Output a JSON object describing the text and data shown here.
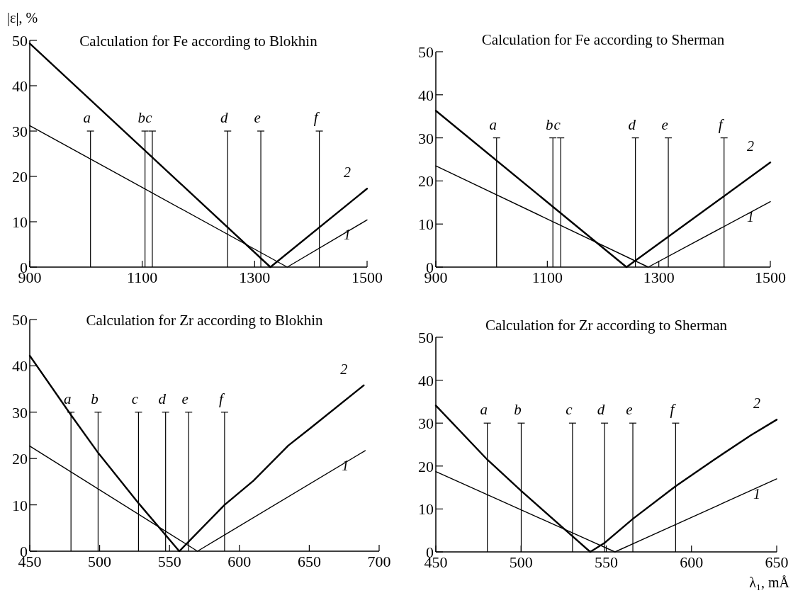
{
  "chart_data": [
    {
      "type": "line",
      "title": "Calculation for Fe according to Blokhin",
      "ylabel": "|ε|, %",
      "xlim": [
        900,
        1500
      ],
      "xticks": [
        900,
        1100,
        1300,
        1500
      ],
      "ylim": [
        0,
        50
      ],
      "yticks": [
        0,
        10,
        20,
        30,
        40,
        50
      ],
      "grid": false,
      "marker": "none",
      "line_style": "solid",
      "series": [
        {
          "name": "1",
          "color": "#000000",
          "x": [
            900,
            1358,
            1500
          ],
          "values": [
            31.2,
            0,
            10.4
          ]
        },
        {
          "name": "2",
          "color": "#000000",
          "x": [
            900,
            1328,
            1500
          ],
          "values": [
            49.3,
            0,
            17.3
          ]
        }
      ],
      "ref_lines": [
        {
          "axis": "x",
          "value": 1008,
          "label": "a"
        },
        {
          "axis": "x",
          "value": 1105,
          "label": "b"
        },
        {
          "axis": "x",
          "value": 1118,
          "label": "c"
        },
        {
          "axis": "x",
          "value": 1252,
          "label": "d"
        },
        {
          "axis": "x",
          "value": 1311,
          "label": "e"
        },
        {
          "axis": "x",
          "value": 1415,
          "label": "f"
        }
      ]
    },
    {
      "type": "line",
      "title": "Calculation for Fe according to Sherman",
      "xlim": [
        900,
        1500
      ],
      "xticks": [
        900,
        1100,
        1300,
        1500
      ],
      "ylim": [
        0,
        50
      ],
      "yticks": [
        0,
        10,
        20,
        30,
        40,
        50
      ],
      "grid": false,
      "marker": "none",
      "line_style": "solid",
      "series": [
        {
          "name": "1",
          "color": "#000000",
          "x": [
            900,
            1281,
            1500
          ],
          "values": [
            23.5,
            0,
            15.2
          ]
        },
        {
          "name": "2",
          "color": "#000000",
          "x": [
            900,
            1242,
            1500
          ],
          "values": [
            36.3,
            0,
            24.3
          ]
        }
      ],
      "ref_lines": [
        {
          "axis": "x",
          "value": 1009,
          "label": "a"
        },
        {
          "axis": "x",
          "value": 1110,
          "label": "b"
        },
        {
          "axis": "x",
          "value": 1124,
          "label": "c"
        },
        {
          "axis": "x",
          "value": 1258,
          "label": "d"
        },
        {
          "axis": "x",
          "value": 1317,
          "label": "e"
        },
        {
          "axis": "x",
          "value": 1417,
          "label": "f"
        }
      ]
    },
    {
      "type": "line",
      "title": "Calculation for Zr according to Blokhin",
      "xlim": [
        450,
        700
      ],
      "xticks": [
        450,
        500,
        550,
        600,
        650,
        700
      ],
      "ylim": [
        0,
        50
      ],
      "yticks": [
        0,
        10,
        20,
        30,
        40,
        50
      ],
      "grid": false,
      "marker": "none",
      "line_style": "solid",
      "series": [
        {
          "name": "1",
          "color": "#000000",
          "x": [
            450,
            570,
            690
          ],
          "values": [
            22.7,
            0,
            21.7
          ]
        },
        {
          "name": "2",
          "color": "#000000",
          "x": [
            450,
            479.5,
            499,
            528,
            557,
            589.4,
            610,
            635,
            651,
            689
          ],
          "values": [
            42.2,
            29.4,
            21.2,
            10.3,
            0,
            10,
            15.2,
            22.8,
            26.6,
            35.8
          ]
        }
      ],
      "ref_lines": [
        {
          "axis": "x",
          "value": 479.5,
          "label": "a"
        },
        {
          "axis": "x",
          "value": 498.9,
          "label": "b"
        },
        {
          "axis": "x",
          "value": 527.8,
          "label": "c"
        },
        {
          "axis": "x",
          "value": 547.2,
          "label": "d"
        },
        {
          "axis": "x",
          "value": 563.7,
          "label": "e"
        },
        {
          "axis": "x",
          "value": 589.4,
          "label": "f"
        }
      ]
    },
    {
      "type": "line",
      "title": "Calculation for Zr according to Sherman",
      "xlabel": "λ₁, mÅ",
      "xlim": [
        450,
        650
      ],
      "xticks": [
        450,
        500,
        550,
        600,
        650
      ],
      "ylim": [
        0,
        50
      ],
      "yticks": [
        0,
        10,
        20,
        30,
        40,
        50
      ],
      "grid": false,
      "marker": "none",
      "line_style": "solid",
      "series": [
        {
          "name": "1",
          "color": "#000000",
          "x": [
            450,
            555.1,
            650
          ],
          "values": [
            18.7,
            0,
            17.0
          ]
        },
        {
          "name": "2",
          "color": "#000000",
          "x": [
            450,
            480.2,
            500.1,
            540.6,
            549,
            565.6,
            590.7,
            612.6,
            634.9,
            650
          ],
          "values": [
            34.1,
            21.5,
            14.2,
            0,
            2.1,
            7.7,
            15.3,
            21.3,
            27.2,
            30.8
          ]
        }
      ],
      "ref_lines": [
        {
          "axis": "x",
          "value": 480.2,
          "label": "a"
        },
        {
          "axis": "x",
          "value": 500.1,
          "label": "b"
        },
        {
          "axis": "x",
          "value": 530.2,
          "label": "c"
        },
        {
          "axis": "x",
          "value": 549,
          "label": "d"
        },
        {
          "axis": "x",
          "value": 565.6,
          "label": "e"
        },
        {
          "axis": "x",
          "value": 590.7,
          "label": "f"
        }
      ]
    }
  ]
}
